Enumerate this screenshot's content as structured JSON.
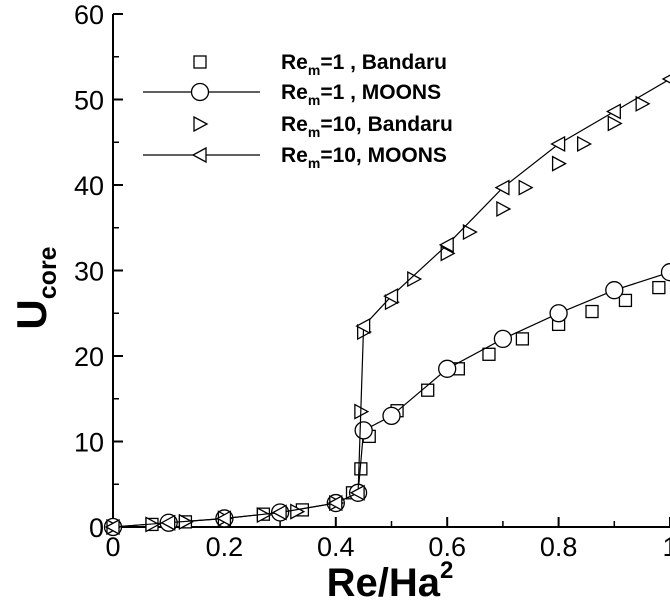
{
  "chart_data": {
    "type": "scatter",
    "xlabel": {
      "base": "Re/Ha",
      "sup": "2"
    },
    "ylabel": {
      "base": "U",
      "sub": "core"
    },
    "xlim": [
      0,
      1.0
    ],
    "ylim": [
      0,
      60
    ],
    "xticks": [
      0,
      0.2,
      0.4,
      0.6,
      0.8,
      1.0
    ],
    "xtick_labels": [
      "0",
      "0.2",
      "0.4",
      "0.6",
      "0.8",
      "1"
    ],
    "yticks": [
      0,
      10,
      20,
      30,
      40,
      50,
      60
    ],
    "ytick_labels": [
      "0",
      "10",
      "20",
      "30",
      "40",
      "50",
      "60"
    ],
    "grid": false,
    "legend_position": "top-left",
    "series": [
      {
        "legend_label": {
          "base": "Re",
          "sub": "m",
          "rest": "=1  , Bandaru"
        },
        "marker": "square",
        "line": false,
        "x": [
          0.0,
          0.07,
          0.13,
          0.2,
          0.27,
          0.34,
          0.4,
          0.43,
          0.445,
          0.46,
          0.51,
          0.565,
          0.62,
          0.675,
          0.735,
          0.8,
          0.86,
          0.92,
          0.98
        ],
        "y": [
          0.0,
          0.3,
          0.6,
          1.0,
          1.5,
          2.0,
          2.8,
          4.0,
          6.8,
          10.6,
          13.6,
          16.0,
          18.5,
          20.2,
          22.0,
          23.7,
          25.2,
          26.5,
          28.0
        ]
      },
      {
        "legend_label": {
          "base": "Re",
          "sub": "m",
          "rest": "=1  , MOONS"
        },
        "marker": "circle",
        "line": true,
        "x": [
          0.0,
          0.1,
          0.2,
          0.3,
          0.4,
          0.44,
          0.45,
          0.5,
          0.6,
          0.7,
          0.8,
          0.9,
          1.0
        ],
        "y": [
          0.0,
          0.5,
          1.0,
          1.7,
          2.8,
          4.0,
          11.3,
          13.0,
          18.5,
          22.0,
          25.0,
          27.7,
          29.8
        ]
      },
      {
        "legend_label": {
          "base": "Re",
          "sub": "m",
          "rest": "=10, Bandaru"
        },
        "marker": "triangle-right",
        "line": false,
        "x": [
          0.0,
          0.07,
          0.13,
          0.2,
          0.27,
          0.33,
          0.4,
          0.445,
          0.45,
          0.5,
          0.54,
          0.6,
          0.64,
          0.7,
          0.74,
          0.8,
          0.845,
          0.9,
          0.95
        ],
        "y": [
          0.0,
          0.3,
          0.6,
          1.0,
          1.4,
          1.8,
          2.8,
          13.5,
          22.8,
          26.3,
          29.0,
          32.0,
          34.5,
          37.2,
          39.7,
          42.5,
          44.8,
          47.2,
          49.5
        ]
      },
      {
        "legend_label": {
          "base": "Re",
          "sub": "m",
          "rest": "=10, MOONS"
        },
        "marker": "triangle-left",
        "line": true,
        "x": [
          0.0,
          0.1,
          0.2,
          0.3,
          0.4,
          0.44,
          0.45,
          0.5,
          0.6,
          0.7,
          0.8,
          0.9,
          1.0
        ],
        "y": [
          0.0,
          0.5,
          1.0,
          1.7,
          2.8,
          4.0,
          23.5,
          27.0,
          33.0,
          39.7,
          44.8,
          48.6,
          52.4
        ]
      }
    ]
  }
}
